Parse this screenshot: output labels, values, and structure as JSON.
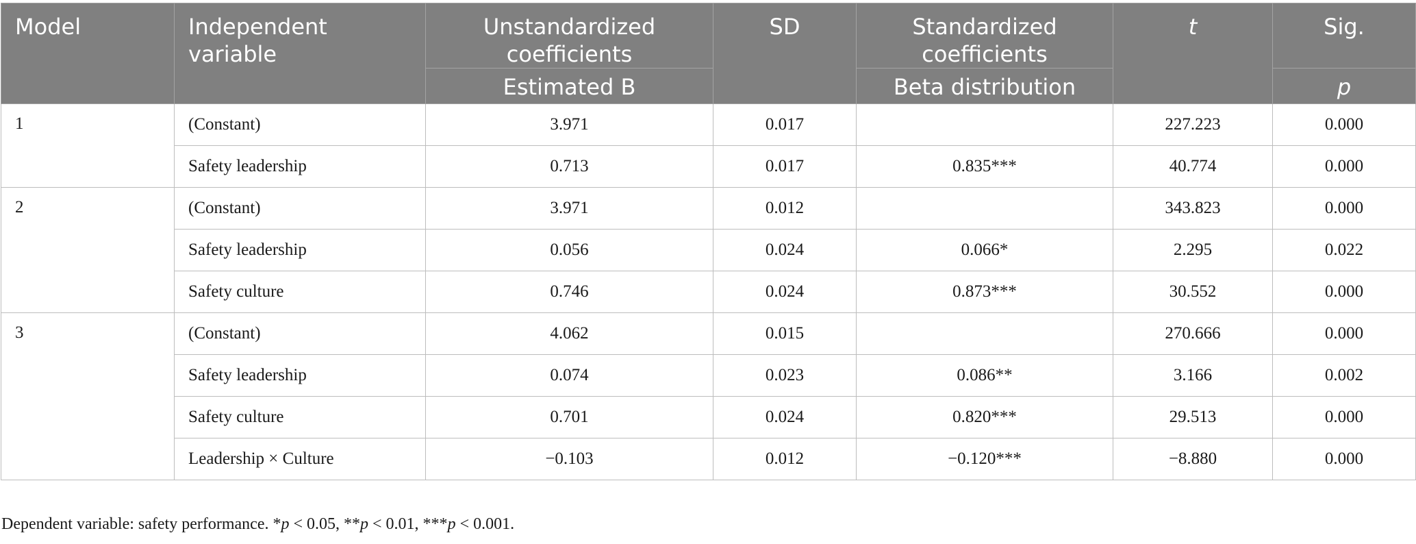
{
  "header": {
    "model": "Model",
    "independent_variable": "Independent variable",
    "unstandardized": "Unstandardized coefficients",
    "estimated_b": "Estimated B",
    "sd": "SD",
    "standardized": "Standardized coefficients",
    "beta": "Beta distribution",
    "t": "t",
    "sig": "Sig.",
    "p": "p"
  },
  "groups": [
    {
      "model": "1",
      "rows": [
        {
          "variable": "(Constant)",
          "b": "3.971",
          "sd": "0.017",
          "beta": "",
          "t": "227.223",
          "p": "0.000"
        },
        {
          "variable": "Safety leadership",
          "b": "0.713",
          "sd": "0.017",
          "beta": "0.835***",
          "t": "40.774",
          "p": "0.000"
        }
      ]
    },
    {
      "model": "2",
      "rows": [
        {
          "variable": "(Constant)",
          "b": "3.971",
          "sd": "0.012",
          "beta": "",
          "t": "343.823",
          "p": "0.000"
        },
        {
          "variable": "Safety leadership",
          "b": "0.056",
          "sd": "0.024",
          "beta": "0.066*",
          "t": "2.295",
          "p": "0.022"
        },
        {
          "variable": "Safety culture",
          "b": "0.746",
          "sd": "0.024",
          "beta": "0.873***",
          "t": "30.552",
          "p": "0.000"
        }
      ]
    },
    {
      "model": "3",
      "rows": [
        {
          "variable": "(Constant)",
          "b": "4.062",
          "sd": "0.015",
          "beta": "",
          "t": "270.666",
          "p": "0.000"
        },
        {
          "variable": "Safety leadership",
          "b": "0.074",
          "sd": "0.023",
          "beta": "0.086**",
          "t": "3.166",
          "p": "0.002"
        },
        {
          "variable": "Safety culture",
          "b": "0.701",
          "sd": "0.024",
          "beta": "0.820***",
          "t": "29.513",
          "p": "0.000"
        },
        {
          "variable": "Leadership × Culture",
          "b": "−0.103",
          "sd": "0.012",
          "beta": "−0.120***",
          "t": "−8.880",
          "p": "0.000"
        }
      ]
    }
  ],
  "footnote": {
    "text1": "Dependent variable: safety performance. *",
    "p1": "p",
    "text2": " < 0.05, **",
    "p2": "p",
    "text3": " < 0.01, ***",
    "p3": "p",
    "text4": " < 0.001."
  }
}
